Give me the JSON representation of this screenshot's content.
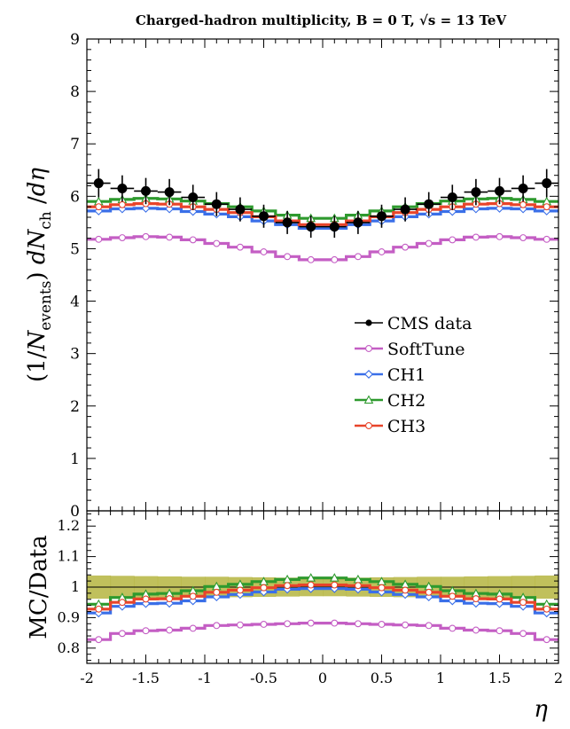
{
  "chart_data": [
    {
      "type": "line",
      "panel": "main",
      "title": "Charged-hadron multiplicity, B = 0 T, √s = 13 TeV",
      "xlabel": "",
      "ylabel": "(1/N_events) dN_ch/dη",
      "ylim": [
        0,
        9
      ],
      "yticks": [
        "0",
        "1",
        "2",
        "3",
        "4",
        "5",
        "6",
        "7",
        "8",
        "9"
      ],
      "legend_position": "center-right",
      "x": [
        -1.9,
        -1.7,
        -1.5,
        -1.3,
        -1.1,
        -0.9,
        -0.7,
        -0.5,
        -0.3,
        -0.1,
        0.1,
        0.3,
        0.5,
        0.7,
        0.9,
        1.1,
        1.3,
        1.5,
        1.7,
        1.9
      ],
      "data": {
        "name": "CMS data",
        "color": "#000000",
        "values": [
          6.25,
          6.15,
          6.1,
          6.08,
          5.98,
          5.85,
          5.75,
          5.62,
          5.5,
          5.42,
          5.42,
          5.5,
          5.62,
          5.75,
          5.85,
          5.98,
          6.08,
          6.1,
          6.15,
          6.25
        ],
        "errors": [
          0.27,
          0.25,
          0.25,
          0.25,
          0.24,
          0.23,
          0.23,
          0.22,
          0.22,
          0.21,
          0.21,
          0.22,
          0.22,
          0.23,
          0.23,
          0.24,
          0.25,
          0.25,
          0.25,
          0.27
        ]
      },
      "series": [
        {
          "name": "SoftTune",
          "color": "#c45ec4",
          "values": [
            5.18,
            5.21,
            5.23,
            5.22,
            5.17,
            5.1,
            5.03,
            4.94,
            4.85,
            4.79,
            4.79,
            4.85,
            4.94,
            5.03,
            5.1,
            5.17,
            5.22,
            5.23,
            5.21,
            5.18
          ]
        },
        {
          "name": "CH1",
          "color": "#3a6fe8",
          "values": [
            5.72,
            5.76,
            5.77,
            5.76,
            5.71,
            5.66,
            5.61,
            5.53,
            5.46,
            5.39,
            5.39,
            5.46,
            5.53,
            5.61,
            5.66,
            5.71,
            5.76,
            5.77,
            5.76,
            5.72
          ]
        },
        {
          "name": "CH2",
          "color": "#2e9a2e",
          "values": [
            5.9,
            5.94,
            5.96,
            5.95,
            5.91,
            5.86,
            5.8,
            5.72,
            5.64,
            5.58,
            5.58,
            5.64,
            5.72,
            5.8,
            5.86,
            5.91,
            5.95,
            5.96,
            5.94,
            5.9
          ]
        },
        {
          "name": "CH3",
          "color": "#e8442a",
          "values": [
            5.8,
            5.84,
            5.86,
            5.85,
            5.8,
            5.75,
            5.69,
            5.61,
            5.53,
            5.46,
            5.46,
            5.53,
            5.61,
            5.69,
            5.75,
            5.8,
            5.85,
            5.86,
            5.84,
            5.8
          ]
        }
      ]
    },
    {
      "type": "line",
      "panel": "ratio",
      "xlabel": "η",
      "ylabel": "MC/Data",
      "xlim": [
        -2,
        2
      ],
      "ylim": [
        0.75,
        1.25
      ],
      "xticks": [
        "-2",
        "-1.5",
        "-1",
        "-0.5",
        "0",
        "0.5",
        "1",
        "1.5",
        "2"
      ],
      "yticks": [
        "0.8",
        "0.9",
        "1",
        "1.1",
        "1.2"
      ],
      "band_halfwidth": [
        0.038,
        0.037,
        0.036,
        0.035,
        0.034,
        0.034,
        0.033,
        0.032,
        0.031,
        0.03,
        0.03,
        0.031,
        0.032,
        0.033,
        0.034,
        0.034,
        0.035,
        0.036,
        0.037,
        0.038
      ],
      "band_color": "#b5b53f",
      "series": [
        {
          "name": "SoftTune",
          "color": "#c45ec4",
          "values": [
            0.828,
            0.848,
            0.857,
            0.859,
            0.865,
            0.874,
            0.876,
            0.878,
            0.88,
            0.882,
            0.882,
            0.88,
            0.878,
            0.876,
            0.874,
            0.865,
            0.859,
            0.857,
            0.848,
            0.828
          ]
        },
        {
          "name": "CH1",
          "color": "#3a6fe8",
          "values": [
            0.915,
            0.937,
            0.946,
            0.947,
            0.955,
            0.968,
            0.976,
            0.984,
            0.993,
            0.995,
            0.995,
            0.993,
            0.984,
            0.976,
            0.968,
            0.955,
            0.947,
            0.946,
            0.937,
            0.915
          ]
        },
        {
          "name": "CH2",
          "color": "#2e9a2e",
          "values": [
            0.944,
            0.966,
            0.977,
            0.979,
            0.988,
            1.002,
            1.009,
            1.018,
            1.025,
            1.03,
            1.03,
            1.025,
            1.018,
            1.009,
            1.002,
            0.988,
            0.979,
            0.977,
            0.966,
            0.944
          ]
        },
        {
          "name": "CH3",
          "color": "#e8442a",
          "values": [
            0.928,
            0.95,
            0.961,
            0.962,
            0.97,
            0.983,
            0.99,
            0.998,
            1.005,
            1.007,
            1.007,
            1.005,
            0.998,
            0.99,
            0.983,
            0.97,
            0.962,
            0.961,
            0.95,
            0.928
          ]
        }
      ]
    }
  ]
}
